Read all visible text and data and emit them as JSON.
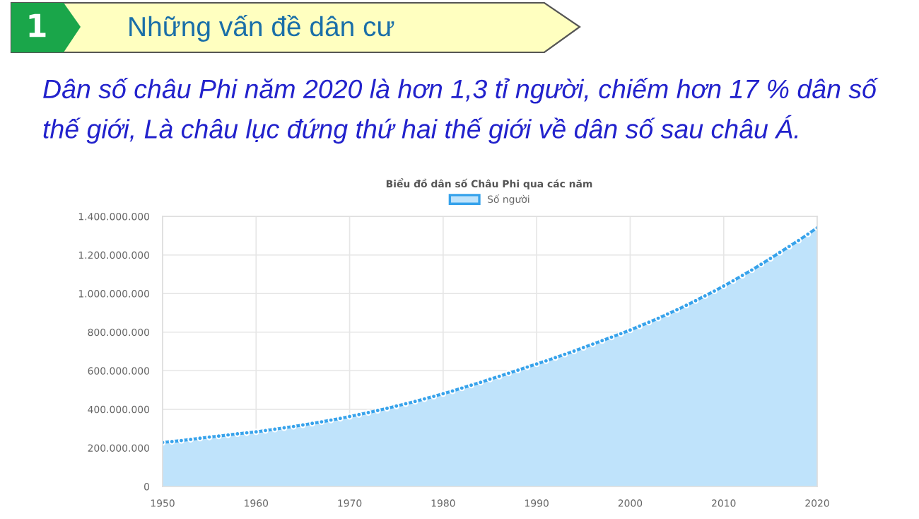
{
  "chart_data": {
    "type": "area",
    "title": "Biểu đồ dân số Châu Phi qua các năm",
    "annotations": [
      "1",
      "Những vấn đề dân cư",
      "Dân số châu Phi năm 2020 là hơn 1,3 tỉ người, chiếm hơn 17 % dân số thế giới, Là châu lục đứng thứ hai thế giới về dân số sau châu Á."
    ],
    "x": [
      1950,
      1951,
      1952,
      1953,
      1954,
      1955,
      1956,
      1957,
      1958,
      1959,
      1960,
      1961,
      1962,
      1963,
      1964,
      1965,
      1966,
      1967,
      1968,
      1969,
      1970,
      1971,
      1972,
      1973,
      1974,
      1975,
      1976,
      1977,
      1978,
      1979,
      1980,
      1981,
      1982,
      1983,
      1984,
      1985,
      1986,
      1987,
      1988,
      1989,
      1990,
      1991,
      1992,
      1993,
      1994,
      1995,
      1996,
      1997,
      1998,
      1999,
      2000,
      2001,
      2002,
      2003,
      2004,
      2005,
      2006,
      2007,
      2008,
      2009,
      2010,
      2011,
      2012,
      2013,
      2014,
      2015,
      2016,
      2017,
      2018,
      2019,
      2020
    ],
    "series": [
      {
        "name": "Số người",
        "color": "#36a2eb",
        "values": [
          228000000,
          233000000,
          238000000,
          244000000,
          250000000,
          256000000,
          261000000,
          267000000,
          273000000,
          278000000,
          283000000,
          290000000,
          297000000,
          304000000,
          311000000,
          319000000,
          327000000,
          335000000,
          344000000,
          353000000,
          363000000,
          373000000,
          383000000,
          394000000,
          405000000,
          417000000,
          429000000,
          441000000,
          454000000,
          467000000,
          481000000,
          495000000,
          510000000,
          525000000,
          540000000,
          556000000,
          571000000,
          587000000,
          603000000,
          619000000,
          635000000,
          651000000,
          668000000,
          685000000,
          702000000,
          720000000,
          738000000,
          756000000,
          774000000,
          792000000,
          811000000,
          831000000,
          851000000,
          872000000,
          894000000,
          916000000,
          939000000,
          963000000,
          988000000,
          1013000000,
          1039000000,
          1066000000,
          1094000000,
          1122000000,
          1152000000,
          1182000000,
          1213000000,
          1244000000,
          1275000000,
          1308000000,
          1341000000
        ]
      }
    ],
    "xlim": [
      1950,
      2020
    ],
    "xticks": [
      1950,
      1960,
      1970,
      1980,
      1990,
      2000,
      2010,
      2020
    ],
    "ylim": [
      0,
      1400000000
    ],
    "yticks": [
      {
        "value": 0,
        "label": "0"
      },
      {
        "value": 200000000,
        "label": "200.000.000"
      },
      {
        "value": 400000000,
        "label": "400.000.000"
      },
      {
        "value": 600000000,
        "label": "600.000.000"
      },
      {
        "value": 800000000,
        "label": "800.000.000"
      },
      {
        "value": 1000000000,
        "label": "1.000.000.000"
      },
      {
        "value": 1200000000,
        "label": "1.200.000.000"
      },
      {
        "value": 1400000000,
        "label": "1.400.000.000"
      }
    ],
    "grid": true,
    "legend": "top",
    "marker": "circle",
    "line_style": "solid"
  }
}
